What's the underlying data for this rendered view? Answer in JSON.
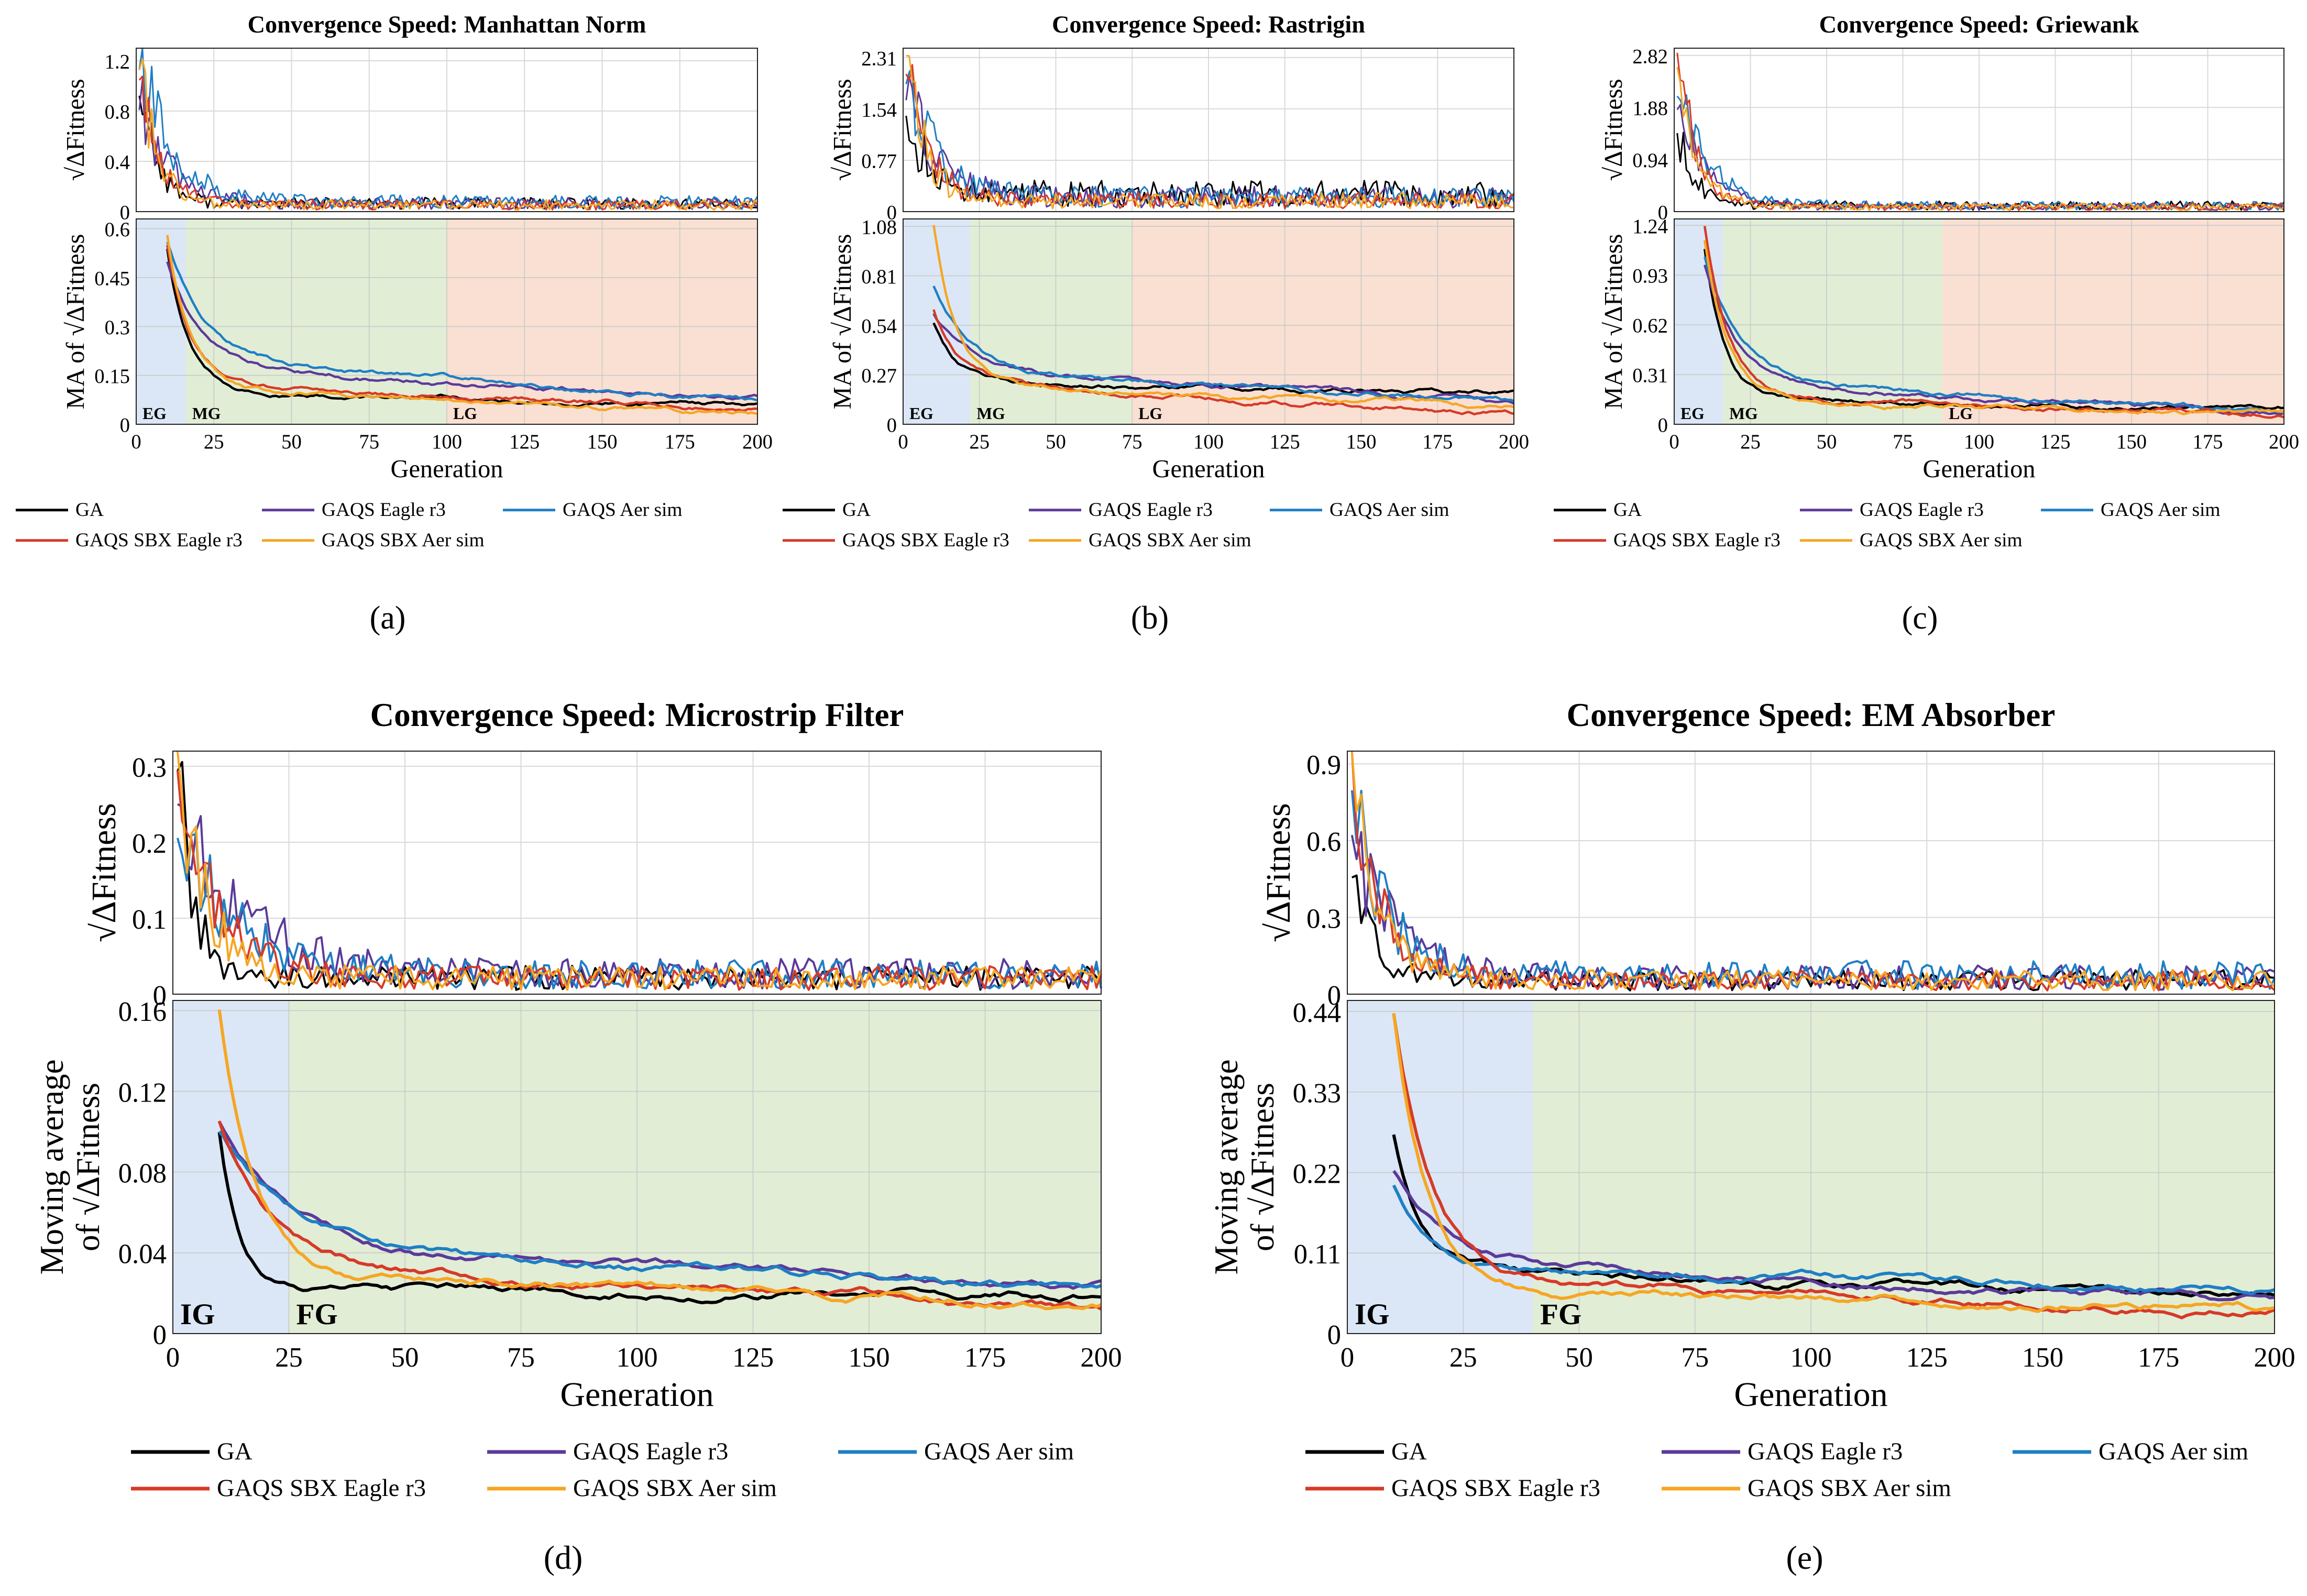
{
  "colors": {
    "GA": "#000000",
    "GAQS Eagle r3": "#5b3a9a",
    "GAQS Aer sim": "#1f7fc4",
    "GAQS SBX Eagle r3": "#d63a27",
    "GAQS SBX Aer sim": "#f5a623",
    "zone_blue": "#dbe7f6",
    "zone_green": "#e2edd6",
    "zone_orange": "#f9e0d2",
    "grid": "#d9d9d9"
  },
  "chart_data": [
    {
      "id": "a",
      "sublabel": "(a)",
      "type": "line",
      "title": "Convergence Speed: Manhattan Norm",
      "xlabel": "Generation",
      "top_ylabel": "√ΔFitness",
      "bottom_ylabel": "MA of √ΔFitness",
      "xlim": [
        0,
        200
      ],
      "xticks": [
        "0",
        "25",
        "50",
        "75",
        "100",
        "125",
        "150",
        "175",
        "200"
      ],
      "top_ylim": [
        0,
        1.3
      ],
      "top_yticks": [
        "0",
        "0.4",
        "0.8",
        "1.2"
      ],
      "bottom_ylim": [
        0,
        0.63
      ],
      "bottom_yticks": [
        "0",
        "0.15",
        "0.3",
        "0.45",
        "0.6"
      ],
      "zones": [
        {
          "label": "EG",
          "from": 0,
          "to": 16,
          "color": "zone_blue"
        },
        {
          "label": "MG",
          "from": 16,
          "to": 100,
          "color": "zone_green"
        },
        {
          "label": "LG",
          "from": 100,
          "to": 200,
          "color": "zone_orange"
        }
      ],
      "series": [
        {
          "name": "GA",
          "start": 1.05,
          "final": 0.06,
          "ma_start": 0.54,
          "ma_mid": 0.1,
          "ma_final": 0.06,
          "tau": 12
        },
        {
          "name": "GAQS Eagle r3",
          "start": 0.9,
          "final": 0.06,
          "ma_start": 0.5,
          "ma_mid": 0.17,
          "ma_final": 0.08,
          "tau": 20
        },
        {
          "name": "GAQS Aer sim",
          "start": 1.22,
          "final": 0.07,
          "ma_start": 0.56,
          "ma_mid": 0.2,
          "ma_final": 0.07,
          "tau": 22
        },
        {
          "name": "GAQS SBX Eagle r3",
          "start": 1.1,
          "final": 0.05,
          "ma_start": 0.55,
          "ma_mid": 0.12,
          "ma_final": 0.05,
          "tau": 14
        },
        {
          "name": "GAQS SBX Aer sim",
          "start": 1.15,
          "final": 0.05,
          "ma_start": 0.58,
          "ma_mid": 0.11,
          "ma_final": 0.04,
          "tau": 13
        }
      ]
    },
    {
      "id": "b",
      "sublabel": "(b)",
      "type": "line",
      "title": "Convergence Speed: Rastrigin",
      "xlabel": "Generation",
      "top_ylabel": "√ΔFitness",
      "bottom_ylabel": "MA of √ΔFitness",
      "xlim": [
        0,
        200
      ],
      "xticks": [
        "0",
        "25",
        "50",
        "75",
        "100",
        "125",
        "150",
        "175",
        "200"
      ],
      "top_ylim": [
        0,
        2.45
      ],
      "top_yticks": [
        "0",
        "0.77",
        "1.54",
        "2.31"
      ],
      "bottom_ylim": [
        0,
        1.12
      ],
      "bottom_yticks": [
        "0",
        "0.27",
        "0.54",
        "0.81",
        "1.08"
      ],
      "zones": [
        {
          "label": "EG",
          "from": 0,
          "to": 22,
          "color": "zone_blue"
        },
        {
          "label": "MG",
          "from": 22,
          "to": 75,
          "color": "zone_green"
        },
        {
          "label": "LG",
          "from": 75,
          "to": 200,
          "color": "zone_orange"
        }
      ],
      "series": [
        {
          "name": "GA",
          "start": 1.6,
          "final": 0.25,
          "ma_start": 0.55,
          "ma_mid": 0.22,
          "ma_final": 0.18,
          "tau": 14
        },
        {
          "name": "GAQS Eagle r3",
          "start": 1.8,
          "final": 0.2,
          "ma_start": 0.6,
          "ma_mid": 0.3,
          "ma_final": 0.12,
          "tau": 22
        },
        {
          "name": "GAQS Aer sim",
          "start": 2.0,
          "final": 0.2,
          "ma_start": 0.75,
          "ma_mid": 0.3,
          "ma_final": 0.12,
          "tau": 22
        },
        {
          "name": "GAQS SBX Eagle r3",
          "start": 2.1,
          "final": 0.15,
          "ma_start": 0.62,
          "ma_mid": 0.22,
          "ma_final": 0.06,
          "tau": 16
        },
        {
          "name": "GAQS SBX Aer sim",
          "start": 2.31,
          "final": 0.15,
          "ma_start": 1.08,
          "ma_mid": 0.2,
          "ma_final": 0.1,
          "tau": 14
        }
      ]
    },
    {
      "id": "c",
      "sublabel": "(c)",
      "type": "line",
      "title": "Convergence Speed: Griewank",
      "xlabel": "Generation",
      "top_ylabel": "√ΔFitness",
      "bottom_ylabel": "MA of √ΔFitness",
      "xlim": [
        0,
        200
      ],
      "xticks": [
        "0",
        "25",
        "50",
        "75",
        "100",
        "125",
        "150",
        "175",
        "200"
      ],
      "top_ylim": [
        0,
        2.95
      ],
      "top_yticks": [
        "0",
        "0.94",
        "1.88",
        "2.82"
      ],
      "bottom_ylim": [
        0,
        1.28
      ],
      "bottom_yticks": [
        "0",
        "0.31",
        "0.62",
        "0.93",
        "1.24"
      ],
      "zones": [
        {
          "label": "EG",
          "from": 0,
          "to": 16,
          "color": "zone_blue"
        },
        {
          "label": "MG",
          "from": 16,
          "to": 88,
          "color": "zone_green"
        },
        {
          "label": "LG",
          "from": 88,
          "to": 200,
          "color": "zone_orange"
        }
      ],
      "series": [
        {
          "name": "GA",
          "start": 1.5,
          "final": 0.1,
          "ma_start": 1.1,
          "ma_mid": 0.15,
          "ma_final": 0.1,
          "tau": 12
        },
        {
          "name": "GAQS Eagle r3",
          "start": 1.9,
          "final": 0.08,
          "ma_start": 1.0,
          "ma_mid": 0.25,
          "ma_final": 0.07,
          "tau": 20
        },
        {
          "name": "GAQS Aer sim",
          "start": 2.1,
          "final": 0.1,
          "ma_start": 1.05,
          "ma_mid": 0.27,
          "ma_final": 0.08,
          "tau": 22
        },
        {
          "name": "GAQS SBX Eagle r3",
          "start": 2.82,
          "final": 0.08,
          "ma_start": 1.24,
          "ma_mid": 0.18,
          "ma_final": 0.05,
          "tau": 14
        },
        {
          "name": "GAQS SBX Aer sim",
          "start": 2.5,
          "final": 0.08,
          "ma_start": 1.15,
          "ma_mid": 0.16,
          "ma_final": 0.06,
          "tau": 14
        }
      ]
    },
    {
      "id": "d",
      "sublabel": "(d)",
      "type": "line",
      "title": "Convergence Speed: Microstrip Filter",
      "xlabel": "Generation",
      "top_ylabel": "√ΔFitness",
      "bottom_ylabel_line1": "Moving average",
      "bottom_ylabel_line2": "of √ΔFitness",
      "xlim": [
        0,
        200
      ],
      "xticks": [
        "0",
        "25",
        "50",
        "75",
        "100",
        "125",
        "150",
        "175",
        "200"
      ],
      "top_ylim": [
        0,
        0.32
      ],
      "top_yticks": [
        "0",
        "0.1",
        "0.2",
        "0.3"
      ],
      "bottom_ylim": [
        0,
        0.165
      ],
      "bottom_yticks": [
        "0",
        "0.04",
        "0.08",
        "0.12",
        "0.16"
      ],
      "zones": [
        {
          "label": "IG",
          "from": 0,
          "to": 25,
          "color": "zone_blue"
        },
        {
          "label": "FG",
          "from": 25,
          "to": 200,
          "color": "zone_green"
        }
      ],
      "series": [
        {
          "name": "GA",
          "start": 0.3,
          "final": 0.02,
          "ma_start": 0.1,
          "ma_mid": 0.022,
          "ma_final": 0.018,
          "tau": 8
        },
        {
          "name": "GAQS Eagle r3",
          "start": 0.25,
          "final": 0.025,
          "ma_start": 0.105,
          "ma_mid": 0.04,
          "ma_final": 0.025,
          "tau": 30
        },
        {
          "name": "GAQS Aer sim",
          "start": 0.2,
          "final": 0.025,
          "ma_start": 0.1,
          "ma_mid": 0.042,
          "ma_final": 0.022,
          "tau": 30
        },
        {
          "name": "GAQS SBX Eagle r3",
          "start": 0.28,
          "final": 0.02,
          "ma_start": 0.105,
          "ma_mid": 0.033,
          "ma_final": 0.012,
          "tau": 20
        },
        {
          "name": "GAQS SBX Aer sim",
          "start": 0.3,
          "final": 0.02,
          "ma_start": 0.16,
          "ma_mid": 0.03,
          "ma_final": 0.015,
          "tau": 14
        }
      ]
    },
    {
      "id": "e",
      "sublabel": "(e)",
      "type": "line",
      "title": "Convergence Speed: EM Absorber",
      "xlabel": "Generation",
      "top_ylabel": "√ΔFitness",
      "bottom_ylabel_line1": "Moving average",
      "bottom_ylabel_line2": "of √ΔFitness",
      "xlim": [
        0,
        200
      ],
      "xticks": [
        "0",
        "25",
        "50",
        "75",
        "100",
        "125",
        "150",
        "175",
        "200"
      ],
      "top_ylim": [
        0,
        0.95
      ],
      "top_yticks": [
        "0",
        "0.3",
        "0.6",
        "0.9"
      ],
      "bottom_ylim": [
        0,
        0.455
      ],
      "bottom_yticks": [
        "0",
        "0.11",
        "0.22",
        "0.33",
        "0.44"
      ],
      "zones": [
        {
          "label": "IG",
          "from": 0,
          "to": 40,
          "color": "zone_blue"
        },
        {
          "label": "FG",
          "from": 40,
          "to": 200,
          "color": "zone_green"
        }
      ],
      "series": [
        {
          "name": "GA",
          "start": 0.45,
          "final": 0.05,
          "ma_start": 0.27,
          "ma_mid": 0.085,
          "ma_final": 0.05,
          "tau": 10
        },
        {
          "name": "GAQS Eagle r3",
          "start": 0.6,
          "final": 0.06,
          "ma_start": 0.22,
          "ma_mid": 0.1,
          "ma_final": 0.045,
          "tau": 20
        },
        {
          "name": "GAQS Aer sim",
          "start": 0.75,
          "final": 0.07,
          "ma_start": 0.2,
          "ma_mid": 0.09,
          "ma_final": 0.06,
          "tau": 16
        },
        {
          "name": "GAQS SBX Eagle r3",
          "start": 0.9,
          "final": 0.05,
          "ma_start": 0.44,
          "ma_mid": 0.08,
          "ma_final": 0.03,
          "tau": 14
        },
        {
          "name": "GAQS SBX Aer sim",
          "start": 0.9,
          "final": 0.05,
          "ma_start": 0.44,
          "ma_mid": 0.06,
          "ma_final": 0.035,
          "tau": 13
        }
      ]
    }
  ],
  "legend": {
    "row1": [
      "GA",
      "GAQS Eagle r3",
      "GAQS Aer sim"
    ],
    "row2": [
      "GAQS SBX Eagle r3",
      "GAQS SBX Aer sim"
    ]
  }
}
